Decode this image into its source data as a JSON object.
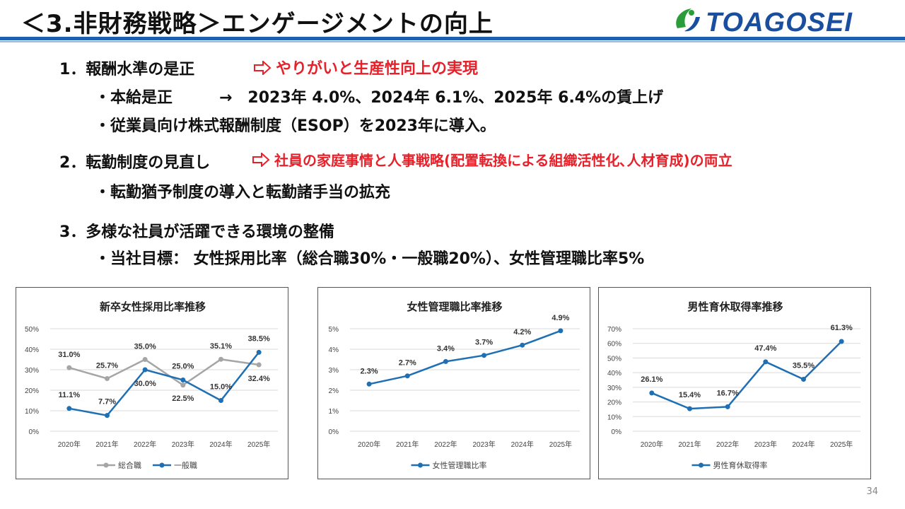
{
  "header": {
    "title": "＜3.非財務戦略＞エンゲージメントの向上",
    "logo_text": "TOAGOSEI",
    "page_number": "34"
  },
  "sections": [
    {
      "heading": "1．報酬水準の是正",
      "result": "やりがいと生産性向上の実現",
      "items": [
        "・本給是正　　　→　2023年 4.0%、2024年 6.1%、2025年 6.4%の賃上げ",
        "・従業員向け株式報酬制度（ESOP）を2023年に導入。"
      ]
    },
    {
      "heading": "2．転勤制度の見直し",
      "result": "社員の家庭事情と人事戦略(配置転換による組織活性化､人材育成)の両立",
      "items": [
        "・転勤猶予制度の導入と転勤諸手当の拡充"
      ]
    },
    {
      "heading": "3．多様な社員が活躍できる環境の整備",
      "result": "",
      "items": [
        "・当社目標： 女性採用比率（総合職30%・一般職20%）、女性管理職比率5%"
      ]
    }
  ],
  "colors": {
    "accent_red": "#e8202a",
    "header_blue": "#1f5fb0",
    "series_blue": "#1f6fb4",
    "series_grey": "#a5a5a5"
  },
  "chart_data": [
    {
      "type": "line",
      "title": "新卒女性採用比率推移",
      "categories": [
        "2020年",
        "2021年",
        "2022年",
        "2023年",
        "2024年",
        "2025年"
      ],
      "ylim": [
        0,
        50
      ],
      "yticks": [
        0,
        10,
        20,
        30,
        40,
        50
      ],
      "unit": "%",
      "yticklabels": [
        "0%",
        "10%",
        "20%",
        "30%",
        "40%",
        "50%"
      ],
      "grid": true,
      "legend": "bottom",
      "series": [
        {
          "name": "総合職",
          "color": "#a5a5a5",
          "values": [
            31.0,
            25.7,
            35.0,
            22.5,
            35.1,
            32.4
          ],
          "labels": [
            "31.0%",
            "25.7%",
            "35.0%",
            "22.5%",
            "35.1%",
            "32.4%"
          ]
        },
        {
          "name": "一般職",
          "color": "#1f6fb4",
          "values": [
            11.1,
            7.7,
            30.0,
            25.0,
            15.0,
            38.5
          ],
          "labels": [
            "11.1%",
            "7.7%",
            "30.0%",
            "25.0%",
            "15.0%",
            "38.5%"
          ]
        }
      ]
    },
    {
      "type": "line",
      "title": "女性管理職比率推移",
      "categories": [
        "2020年",
        "2021年",
        "2022年",
        "2023年",
        "2024年",
        "2025年"
      ],
      "ylim": [
        0,
        5
      ],
      "yticks": [
        0,
        1,
        2,
        3,
        4,
        5
      ],
      "unit": "%",
      "yticklabels": [
        "0%",
        "1%",
        "2%",
        "3%",
        "4%",
        "5%"
      ],
      "grid": true,
      "legend": "bottom",
      "series": [
        {
          "name": "女性管理職比率",
          "color": "#1f6fb4",
          "values": [
            2.3,
            2.7,
            3.4,
            3.7,
            4.2,
            4.9
          ],
          "labels": [
            "2.3%",
            "2.7%",
            "3.4%",
            "3.7%",
            "4.2%",
            "4.9%"
          ]
        }
      ]
    },
    {
      "type": "line",
      "title": "男性育休取得率推移",
      "categories": [
        "2020年",
        "2021年",
        "2022年",
        "2023年",
        "2024年",
        "2025年"
      ],
      "ylim": [
        0,
        70
      ],
      "yticks": [
        0,
        10,
        20,
        30,
        40,
        50,
        60,
        70
      ],
      "unit": "%",
      "yticklabels": [
        "0%",
        "10%",
        "20%",
        "30%",
        "40%",
        "50%",
        "60%",
        "70%"
      ],
      "grid": true,
      "legend": "bottom",
      "series": [
        {
          "name": "男性育休取得率",
          "color": "#1f6fb4",
          "values": [
            26.1,
            15.4,
            16.7,
            47.4,
            35.5,
            61.3
          ],
          "labels": [
            "26.1%",
            "15.4%",
            "16.7%",
            "47.4%",
            "35.5%",
            "61.3%"
          ]
        }
      ]
    }
  ]
}
